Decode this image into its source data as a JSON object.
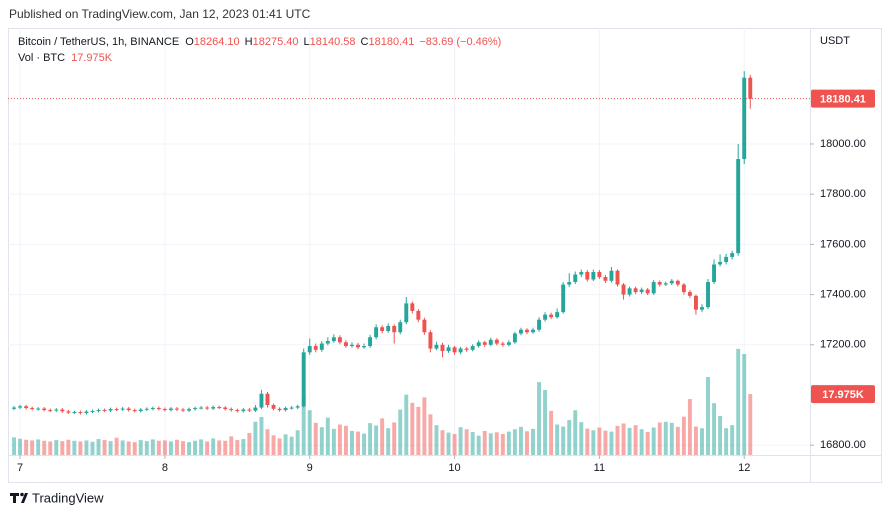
{
  "header": "Published on TradingView.com, Jan 12, 2023 01:41 UTC",
  "footer": "TradingView",
  "chart_data": {
    "type": "candlestick",
    "title": "Bitcoin / TetherUS, 1h, BINANCE",
    "legend_fields": [
      {
        "key": "O",
        "text": "18264.10"
      },
      {
        "key": "H",
        "text": "18275.40"
      },
      {
        "key": "L",
        "text": "18140.58"
      },
      {
        "key": "C",
        "text": "18180.41"
      }
    ],
    "change_label": "−83.69 (−0.46%)",
    "volume_title": "Vol · BTC",
    "volume_label": "17.975K",
    "y_axis_label": "USDT",
    "last_price_label": "18180.41",
    "up_color": "#26a69a",
    "down_color": "#ef5350",
    "grid": true,
    "xlim": [
      -2,
      130.9
    ],
    "xticks": [
      {
        "value": 0,
        "label": "7"
      },
      {
        "value": 24,
        "label": "8"
      },
      {
        "value": 48,
        "label": "9"
      },
      {
        "value": 72,
        "label": "10"
      },
      {
        "value": 96,
        "label": "11"
      },
      {
        "value": 120,
        "label": "12"
      }
    ],
    "ylim": [
      16761,
      18454
    ],
    "yticks": [
      {
        "value": 16800,
        "label": "16800.00"
      },
      {
        "value": 17200,
        "label": "17200.00"
      },
      {
        "value": 17400,
        "label": "17400.00"
      },
      {
        "value": 17600,
        "label": "17600.00"
      },
      {
        "value": 17800,
        "label": "17800.00"
      },
      {
        "value": 18000,
        "label": "18000.00"
      }
    ],
    "volume_ylim": [
      0,
      41300
    ],
    "x": [
      -1,
      0,
      1,
      2,
      3,
      4,
      5,
      6,
      7,
      8,
      9,
      10,
      11,
      12,
      13,
      14,
      15,
      16,
      17,
      18,
      19,
      20,
      21,
      22,
      23,
      24,
      25,
      26,
      27,
      28,
      29,
      30,
      31,
      32,
      33,
      34,
      35,
      36,
      37,
      38,
      39,
      40,
      41,
      42,
      43,
      44,
      45,
      46,
      47,
      48,
      49,
      50,
      51,
      52,
      53,
      54,
      55,
      56,
      57,
      58,
      59,
      60,
      61,
      62,
      63,
      64,
      65,
      66,
      67,
      68,
      69,
      70,
      71,
      72,
      73,
      74,
      75,
      76,
      77,
      78,
      79,
      80,
      81,
      82,
      83,
      84,
      85,
      86,
      87,
      88,
      89,
      90,
      91,
      92,
      93,
      94,
      95,
      96,
      97,
      98,
      99,
      100,
      101,
      102,
      103,
      104,
      105,
      106,
      107,
      108,
      109,
      110,
      111,
      112,
      113,
      114,
      115,
      116,
      117,
      118,
      119,
      120,
      121
    ],
    "open": [
      16945,
      16950,
      16955,
      16948,
      16944,
      16946,
      16940,
      16938,
      16942,
      16935,
      16930,
      16932,
      16928,
      16934,
      16936,
      16940,
      16938,
      16944,
      16942,
      16946,
      16940,
      16936,
      16942,
      16945,
      16948,
      16944,
      16940,
      16946,
      16942,
      16938,
      16944,
      16948,
      16950,
      16946,
      16952,
      16950,
      16944,
      16940,
      16936,
      16942,
      16938,
      16950,
      17005,
      16960,
      16945,
      16940,
      16948,
      16950,
      16955,
      17170,
      17195,
      17180,
      17205,
      17215,
      17230,
      17210,
      17195,
      17200,
      17190,
      17195,
      17230,
      17270,
      17255,
      17275,
      17250,
      17290,
      17365,
      17335,
      17300,
      17250,
      17185,
      17200,
      17175,
      17190,
      17170,
      17185,
      17180,
      17195,
      17210,
      17200,
      17220,
      17205,
      17200,
      17210,
      17245,
      17260,
      17250,
      17260,
      17300,
      17320,
      17310,
      17330,
      17440,
      17450,
      17480,
      17490,
      17460,
      17490,
      17470,
      17455,
      17495,
      17440,
      17400,
      17425,
      17410,
      17420,
      17405,
      17450,
      17440,
      17445,
      17455,
      17440,
      17410,
      17395,
      17340,
      17350,
      17450,
      17520,
      17530,
      17550,
      17565,
      17940,
      18264.1
    ],
    "high": [
      16956,
      16961,
      16961,
      16954,
      16952,
      16952,
      16946,
      16948,
      16948,
      16941,
      16938,
      16938,
      16940,
      16942,
      16946,
      16946,
      16950,
      16950,
      16952,
      16952,
      16946,
      16948,
      16951,
      16954,
      16954,
      16950,
      16952,
      16952,
      16948,
      16950,
      16954,
      16956,
      16956,
      16958,
      16958,
      16956,
      16950,
      16946,
      16948,
      16948,
      16960,
      17020,
      17012,
      16966,
      16951,
      16954,
      16956,
      16961,
      17185,
      17225,
      17205,
      17215,
      17230,
      17242,
      17238,
      17218,
      17210,
      17208,
      17205,
      17240,
      17282,
      17278,
      17285,
      17282,
      17300,
      17390,
      17372,
      17342,
      17308,
      17258,
      17212,
      17208,
      17200,
      17196,
      17192,
      17192,
      17202,
      17218,
      17216,
      17228,
      17226,
      17212,
      17218,
      17252,
      17268,
      17266,
      17268,
      17310,
      17330,
      17328,
      17345,
      17450,
      17485,
      17492,
      17500,
      17498,
      17500,
      17498,
      17478,
      17510,
      17500,
      17446,
      17432,
      17432,
      17428,
      17426,
      17458,
      17456,
      17452,
      17462,
      17460,
      17446,
      17418,
      17400,
      17362,
      17462,
      17540,
      17560,
      17562,
      17575,
      18000,
      18290,
      18275.4
    ],
    "low": [
      16939,
      16944,
      16942,
      16938,
      16938,
      16934,
      16932,
      16932,
      16929,
      16924,
      16924,
      16922,
      16922,
      16928,
      16930,
      16932,
      16932,
      16936,
      16936,
      16934,
      16930,
      16930,
      16936,
      16939,
      16938,
      16934,
      16934,
      16936,
      16932,
      16932,
      16938,
      16942,
      16940,
      16940,
      16944,
      16938,
      16934,
      16930,
      16930,
      16932,
      16932,
      16944,
      16950,
      16939,
      16934,
      16934,
      16942,
      16944,
      16950,
      17160,
      17170,
      17172,
      17198,
      17208,
      17202,
      17188,
      17188,
      17182,
      17184,
      17188,
      17222,
      17246,
      17248,
      17205,
      17242,
      17282,
      17325,
      17290,
      17240,
      17170,
      17178,
      17150,
      17168,
      17160,
      17162,
      17172,
      17174,
      17188,
      17192,
      17194,
      17198,
      17192,
      17194,
      17204,
      17238,
      17242,
      17244,
      17252,
      17292,
      17302,
      17304,
      17324,
      17430,
      17442,
      17470,
      17452,
      17454,
      17462,
      17446,
      17448,
      17432,
      17380,
      17392,
      17402,
      17402,
      17398,
      17398,
      17432,
      17434,
      17438,
      17432,
      17400,
      17386,
      17320,
      17330,
      17342,
      17442,
      17512,
      17520,
      17540,
      17555,
      17920,
      18140.58
    ],
    "close": [
      16950,
      16955,
      16948,
      16944,
      16946,
      16940,
      16938,
      16942,
      16935,
      16930,
      16932,
      16928,
      16934,
      16936,
      16940,
      16938,
      16944,
      16942,
      16946,
      16940,
      16936,
      16942,
      16945,
      16948,
      16944,
      16940,
      16946,
      16942,
      16938,
      16944,
      16948,
      16950,
      16946,
      16952,
      16950,
      16944,
      16940,
      16936,
      16942,
      16938,
      16950,
      17005,
      16960,
      16945,
      16940,
      16948,
      16950,
      16955,
      17170,
      17195,
      17180,
      17205,
      17215,
      17230,
      17210,
      17195,
      17200,
      17190,
      17195,
      17230,
      17270,
      17255,
      17275,
      17250,
      17290,
      17365,
      17335,
      17300,
      17250,
      17185,
      17200,
      17175,
      17190,
      17170,
      17185,
      17180,
      17195,
      17210,
      17200,
      17220,
      17205,
      17200,
      17210,
      17245,
      17260,
      17250,
      17260,
      17300,
      17320,
      17310,
      17330,
      17440,
      17450,
      17480,
      17490,
      17460,
      17490,
      17470,
      17455,
      17495,
      17440,
      17400,
      17425,
      17410,
      17420,
      17405,
      17450,
      17440,
      17445,
      17455,
      17440,
      17410,
      17395,
      17340,
      17350,
      17450,
      17520,
      17530,
      17550,
      17565,
      17940,
      18264.1,
      18180.41
    ],
    "volume": [
      5200,
      4800,
      4500,
      4300,
      4600,
      4200,
      4000,
      4400,
      4100,
      4500,
      4200,
      4000,
      4300,
      3900,
      4700,
      4400,
      4100,
      5100,
      4300,
      4000,
      3800,
      4400,
      4100,
      4600,
      4200,
      4300,
      4000,
      4500,
      4100,
      3800,
      4200,
      4600,
      4000,
      4900,
      4300,
      4200,
      5500,
      4400,
      4700,
      6500,
      9800,
      11200,
      7600,
      5800,
      4900,
      6100,
      5400,
      7300,
      17500,
      13200,
      9500,
      8200,
      11000,
      7700,
      9000,
      8600,
      7100,
      6900,
      6300,
      9400,
      8700,
      10800,
      7900,
      9600,
      13400,
      17800,
      15400,
      14200,
      17000,
      12000,
      8800,
      7300,
      6600,
      6200,
      8200,
      7600,
      6800,
      5700,
      7100,
      6400,
      6700,
      6200,
      6900,
      7600,
      8300,
      7000,
      7700,
      21500,
      19200,
      13000,
      9000,
      8400,
      10300,
      13200,
      9700,
      7800,
      7300,
      8100,
      7200,
      6900,
      8600,
      9300,
      8000,
      8800,
      7600,
      6800,
      8100,
      9600,
      9800,
      9500,
      8300,
      11300,
      16500,
      8400,
      7900,
      23000,
      15300,
      11500,
      7900,
      8800,
      31300,
      29800,
      17975
    ]
  }
}
